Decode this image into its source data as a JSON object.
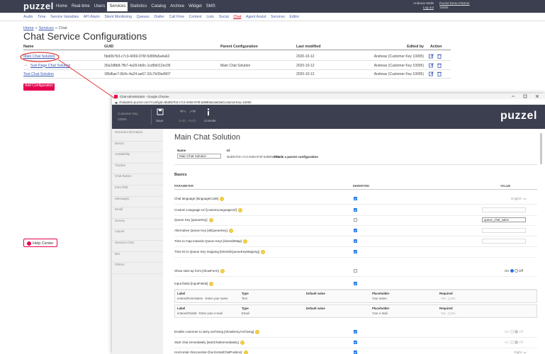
{
  "top_nav": {
    "logo": "puzzel",
    "items": [
      {
        "label": "Home"
      },
      {
        "label": "Real-time"
      },
      {
        "label": "Users"
      },
      {
        "label": "Services",
        "active": true
      },
      {
        "label": "Statistics"
      },
      {
        "label": "Catalog"
      },
      {
        "label": "Archive"
      },
      {
        "label": "Widget"
      },
      {
        "label": "SMS"
      }
    ],
    "user": {
      "name": "Andreas Walls",
      "logout": "Log out",
      "company": "Puzzel Demo Partner",
      "customer_key": "10005"
    }
  },
  "sub_nav": {
    "items": [
      {
        "label": "Audio"
      },
      {
        "label": "Time"
      },
      {
        "label": "Service Variables"
      },
      {
        "label": "API Alarm"
      },
      {
        "label": "Silent Monitoring"
      },
      {
        "label": "Queues"
      },
      {
        "label": "Dialler"
      },
      {
        "label": "Call Flow"
      },
      {
        "label": "Content"
      },
      {
        "label": "Lists"
      },
      {
        "label": "Social"
      },
      {
        "label": "Chat",
        "active": true
      },
      {
        "label": "Agent Assist"
      },
      {
        "label": "Services"
      },
      {
        "label": "Editor"
      }
    ]
  },
  "breadcrumb": {
    "items": [
      "Home",
      "Services",
      "Chat"
    ],
    "separator": "»"
  },
  "page_title": "Chat Service Configurations",
  "config_table": {
    "headers": [
      "Name",
      "GUID",
      "Parent Configuration",
      "Last modified",
      "Edited by",
      "Action"
    ],
    "rows": [
      {
        "name": "Main Chat Solution",
        "guid": "5bd0b7b3-c7c3-4069-976f-5d99fa5a4a62",
        "modified": "2020-10-12",
        "edited_by": "Andreas (Customer Key 10005)"
      },
      {
        "prefix": "→",
        "name": "Sub Page Chat Solution",
        "guid": "30a2d8b8-7fb7-4a29-bb9c-1cd5b012ec09",
        "parent": "Main Chat Solution",
        "modified": "2020-10-12",
        "edited_by": "Andreas (Customer Key 10005)"
      },
      {
        "name": "Test Chat Solution",
        "guid": "1f8d6ae7-0b9c-4a24-ae67-32c7b39a4907",
        "modified": "2020-10-12",
        "edited_by": "Andreas (Customer Key 10005)"
      }
    ]
  },
  "add_button": "Add Configuration",
  "help_center": "Help Center",
  "popup": {
    "window_title": "Chat Administrator - Google Chrome",
    "url": "chatadmin.puzzel.com/?configId=5bd0b7b3-c7c3-4069-976f-5d99fa5a4a62&CustomerKey=10005",
    "customer_key_label": "Customer Key",
    "customer_key": "10005",
    "tools": [
      "Save",
      "Undo",
      "Redo",
      "Console"
    ],
    "logo": "puzzel",
    "sidebar": [
      "General information",
      "Basics",
      "Availability",
      "Tracker",
      "Chat Button",
      "Intro field",
      "Messages",
      "Email",
      "Survey",
      "Layout",
      "Session Chat",
      "Bot",
      "Others"
    ],
    "title": "Main Chat Solution",
    "name_label": "Name",
    "name_value": "Main Chat Solution",
    "id_label": "Id",
    "id_value": "5bd0b7b3-c7c3-4069-976f-5d99fa5a4a62",
    "parent_note": "This is a parent configuration",
    "section": "Basics",
    "headers": [
      "PARAMETER",
      "INHERITED",
      "VALUE"
    ],
    "radio_labels": [
      "On",
      "Off"
    ],
    "required_labels": [
      "Yes",
      "No"
    ],
    "params": [
      {
        "label": "Chat language [languageCode]",
        "inherited": true,
        "value": {
          "type": "select",
          "text": "English"
        }
      },
      {
        "label": "Custom Language Url [customLanguageUrl]",
        "inherited": true,
        "value": {
          "type": "input"
        }
      },
      {
        "label": "Queue Key [queueKey]",
        "inherited": false,
        "value": {
          "type": "input",
          "text": "queue_chat_sales"
        }
      },
      {
        "label": "Alternative Queue Key [altQueueKey]",
        "inherited": true,
        "value": {
          "type": "input"
        }
      },
      {
        "label": "Time to map towards Queue Keys [timeId2Map]",
        "inherited": true,
        "value": {
          "type": "input"
        }
      },
      {
        "label": "Time ID to Queue Key mapping [timeId2QueueKeyMapping]",
        "inherited": true
      },
      {
        "label": "Show start-up form [showForm]",
        "inherited": false,
        "value": {
          "type": "radio",
          "on": true
        }
      },
      {
        "label": "Input fields [inputFields]",
        "inherited": true,
        "fields": {
          "headers": [
            "Label",
            "Type",
            "Default value",
            "Placeholder",
            "Required"
          ],
          "rows": [
            {
              "label": "enteredFormName - Enter your name",
              "type": "Text",
              "placeholder": "Your name",
              "required": false
            },
            {
              "label": "enteredChatId - Enter your e-mail",
              "type": "Email",
              "placeholder": "Your e-mail",
              "required": false
            }
          ]
        }
      },
      {
        "label": "Enable customer to deny archiving [showDenyArchiving]",
        "inherited": true,
        "value": {
          "type": "radio",
          "on": false
        }
      },
      {
        "label": "Start chat immediately [startChatImmediately]",
        "inherited": true,
        "value": {
          "type": "radio",
          "on": false
        }
      },
      {
        "label": "Horizontal chat position [horizontalChatPosition]",
        "inherited": true,
        "value": {
          "type": "select",
          "text": "Right"
        }
      }
    ]
  }
}
